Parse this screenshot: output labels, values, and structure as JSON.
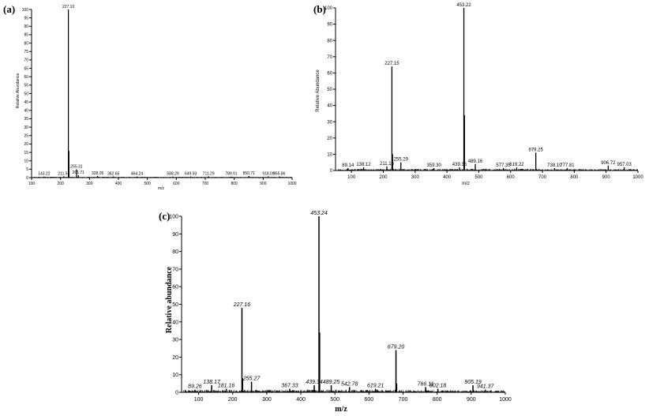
{
  "chart_data": [
    {
      "panel": "(a)",
      "type": "bar",
      "xlabel": "m/z",
      "ylabel": "Relative Abundance",
      "xlim": [
        100,
        1000
      ],
      "ylim": [
        0,
        100
      ],
      "xticks": [
        100,
        200,
        300,
        400,
        500,
        600,
        700,
        800,
        900,
        1000
      ],
      "yticks": [
        0,
        5,
        10,
        15,
        20,
        25,
        30,
        35,
        40,
        45,
        50,
        55,
        60,
        65,
        70,
        75,
        80,
        85,
        90,
        95,
        100
      ],
      "peaks": [
        {
          "mz": 143.22,
          "intensity": 0.6,
          "label": "143.22"
        },
        {
          "mz": 211.51,
          "intensity": 0.8,
          "label": "211.51"
        },
        {
          "mz": 227.1,
          "intensity": 100,
          "label": "227.10"
        },
        {
          "mz": 229.0,
          "intensity": 16
        },
        {
          "mz": 255.31,
          "intensity": 5,
          "label": "255.31"
        },
        {
          "mz": 261.71,
          "intensity": 1.5,
          "label": "261.71"
        },
        {
          "mz": 328.05,
          "intensity": 1.0,
          "label": "328.05"
        },
        {
          "mz": 382.65,
          "intensity": 0.7,
          "label": "382.65"
        },
        {
          "mz": 464.24,
          "intensity": 0.6,
          "label": "464.24"
        },
        {
          "mz": 588.29,
          "intensity": 0.6,
          "label": "588.29"
        },
        {
          "mz": 649.93,
          "intensity": 0.7,
          "label": "649.93"
        },
        {
          "mz": 711.29,
          "intensity": 0.8,
          "label": "711.29"
        },
        {
          "mz": 789.91,
          "intensity": 0.6,
          "label": "789.91"
        },
        {
          "mz": 850.71,
          "intensity": 1.0,
          "label": "850.71"
        },
        {
          "mz": 918.09,
          "intensity": 0.8,
          "label": "918.09"
        },
        {
          "mz": 955.86,
          "intensity": 0.7,
          "label": "955.86"
        }
      ]
    },
    {
      "panel": "(b)",
      "type": "bar",
      "xlabel": "m/z",
      "ylabel": "Relative Abundance",
      "xlim": [
        50,
        1000
      ],
      "ylim": [
        0,
        100
      ],
      "xticks": [
        100,
        200,
        300,
        400,
        500,
        600,
        700,
        800,
        900,
        1000
      ],
      "yticks": [
        0,
        10,
        20,
        30,
        40,
        50,
        60,
        70,
        80,
        90,
        100
      ],
      "peaks": [
        {
          "mz": 89.14,
          "intensity": 1.5,
          "label": "89.14"
        },
        {
          "mz": 138.12,
          "intensity": 2,
          "label": "138.12"
        },
        {
          "mz": 211.16,
          "intensity": 2.5,
          "label": "211.16"
        },
        {
          "mz": 227.15,
          "intensity": 64,
          "label": "227.15"
        },
        {
          "mz": 229.2,
          "intensity": 10
        },
        {
          "mz": 255.29,
          "intensity": 5,
          "label": "255.29"
        },
        {
          "mz": 359.3,
          "intensity": 1.5,
          "label": "359.30"
        },
        {
          "mz": 439.36,
          "intensity": 2,
          "label": "439.36"
        },
        {
          "mz": 453.22,
          "intensity": 100,
          "label": "453.22"
        },
        {
          "mz": 455.2,
          "intensity": 34
        },
        {
          "mz": 489.16,
          "intensity": 4,
          "label": "489.16"
        },
        {
          "mz": 577.35,
          "intensity": 1.5,
          "label": "577.35"
        },
        {
          "mz": 619.22,
          "intensity": 2,
          "label": "619.22"
        },
        {
          "mz": 679.25,
          "intensity": 11,
          "label": "679.25"
        },
        {
          "mz": 738.1,
          "intensity": 1.5,
          "label": "738.10"
        },
        {
          "mz": 777.81,
          "intensity": 1.5,
          "label": "777.81"
        },
        {
          "mz": 906.72,
          "intensity": 3,
          "label": "906.72"
        },
        {
          "mz": 957.03,
          "intensity": 2,
          "label": "957.03"
        }
      ]
    },
    {
      "panel": "(c)",
      "type": "bar",
      "xlabel": "m/z",
      "ylabel": "Relative abundance",
      "xlim": [
        50,
        1000
      ],
      "ylim": [
        0,
        100
      ],
      "xticks": [
        100,
        200,
        300,
        400,
        500,
        600,
        700,
        800,
        900,
        1000
      ],
      "yticks": [
        0,
        10,
        20,
        30,
        40,
        50,
        60,
        70,
        80,
        90,
        100
      ],
      "peaks": [
        {
          "mz": 89.26,
          "intensity": 1.5,
          "label": "89.26"
        },
        {
          "mz": 138.17,
          "intensity": 4,
          "label": "138.17"
        },
        {
          "mz": 181.16,
          "intensity": 2,
          "label": "181.16"
        },
        {
          "mz": 227.16,
          "intensity": 48,
          "label": "227.16"
        },
        {
          "mz": 229.2,
          "intensity": 8
        },
        {
          "mz": 255.27,
          "intensity": 6,
          "label": "255.27"
        },
        {
          "mz": 367.33,
          "intensity": 2,
          "label": "367.33"
        },
        {
          "mz": 439.34,
          "intensity": 4,
          "label": "439.34"
        },
        {
          "mz": 453.24,
          "intensity": 100,
          "label": "453.24"
        },
        {
          "mz": 455.2,
          "intensity": 34
        },
        {
          "mz": 489.25,
          "intensity": 4,
          "label": "489.25"
        },
        {
          "mz": 542.78,
          "intensity": 3,
          "label": "542.78"
        },
        {
          "mz": 619.21,
          "intensity": 2,
          "label": "619.21"
        },
        {
          "mz": 679.2,
          "intensity": 24,
          "label": "679.20"
        },
        {
          "mz": 681.2,
          "intensity": 5
        },
        {
          "mz": 766.11,
          "intensity": 3,
          "label": "766.11"
        },
        {
          "mz": 802.18,
          "intensity": 2,
          "label": "802.18"
        },
        {
          "mz": 905.19,
          "intensity": 4,
          "label": "905.19"
        },
        {
          "mz": 941.37,
          "intensity": 1.5,
          "label": "941.37"
        }
      ]
    }
  ]
}
